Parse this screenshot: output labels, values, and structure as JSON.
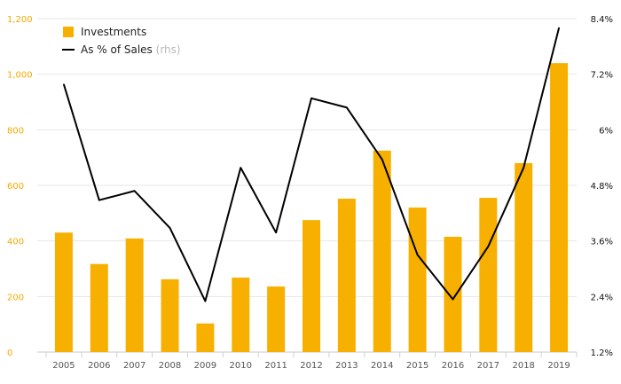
{
  "chart_data": {
    "type": "bar",
    "categories": [
      "2005",
      "2006",
      "2007",
      "2008",
      "2009",
      "2010",
      "2011",
      "2012",
      "2013",
      "2014",
      "2015",
      "2016",
      "2017",
      "2018",
      "2019"
    ],
    "series": [
      {
        "name": "Investments",
        "type": "bar",
        "axis": "left",
        "color": "#f8b000",
        "values": [
          430,
          317,
          409,
          262,
          103,
          268,
          236,
          475,
          552,
          725,
          520,
          415,
          555,
          680,
          1040
        ]
      },
      {
        "name": "As % of Sales",
        "legend_suffix": "(rhs)",
        "type": "line",
        "axis": "right",
        "color": "#000000",
        "values": [
          6.98,
          4.48,
          4.68,
          3.88,
          2.3,
          5.18,
          3.78,
          6.68,
          6.48,
          5.36,
          3.3,
          2.34,
          3.48,
          5.18,
          8.2
        ]
      }
    ],
    "y_left": {
      "min": 0,
      "max": 1200,
      "ticks": [
        0,
        200,
        400,
        600,
        800,
        1000,
        1200
      ],
      "tick_labels": [
        "0",
        "200",
        "400",
        "600",
        "800",
        "1,000",
        "1,200"
      ]
    },
    "y_right": {
      "min": 1.2,
      "max": 8.4,
      "ticks": [
        1.2,
        2.4,
        3.6,
        4.8,
        6.0,
        7.2,
        8.4
      ],
      "tick_labels": [
        "1.2%",
        "2.4%",
        "3.6%",
        "4.8%",
        "6%",
        "7.2%",
        "8.4%"
      ]
    },
    "grid": true,
    "legend_position": "top-left",
    "title": "",
    "xlabel": "",
    "ylabel": ""
  }
}
